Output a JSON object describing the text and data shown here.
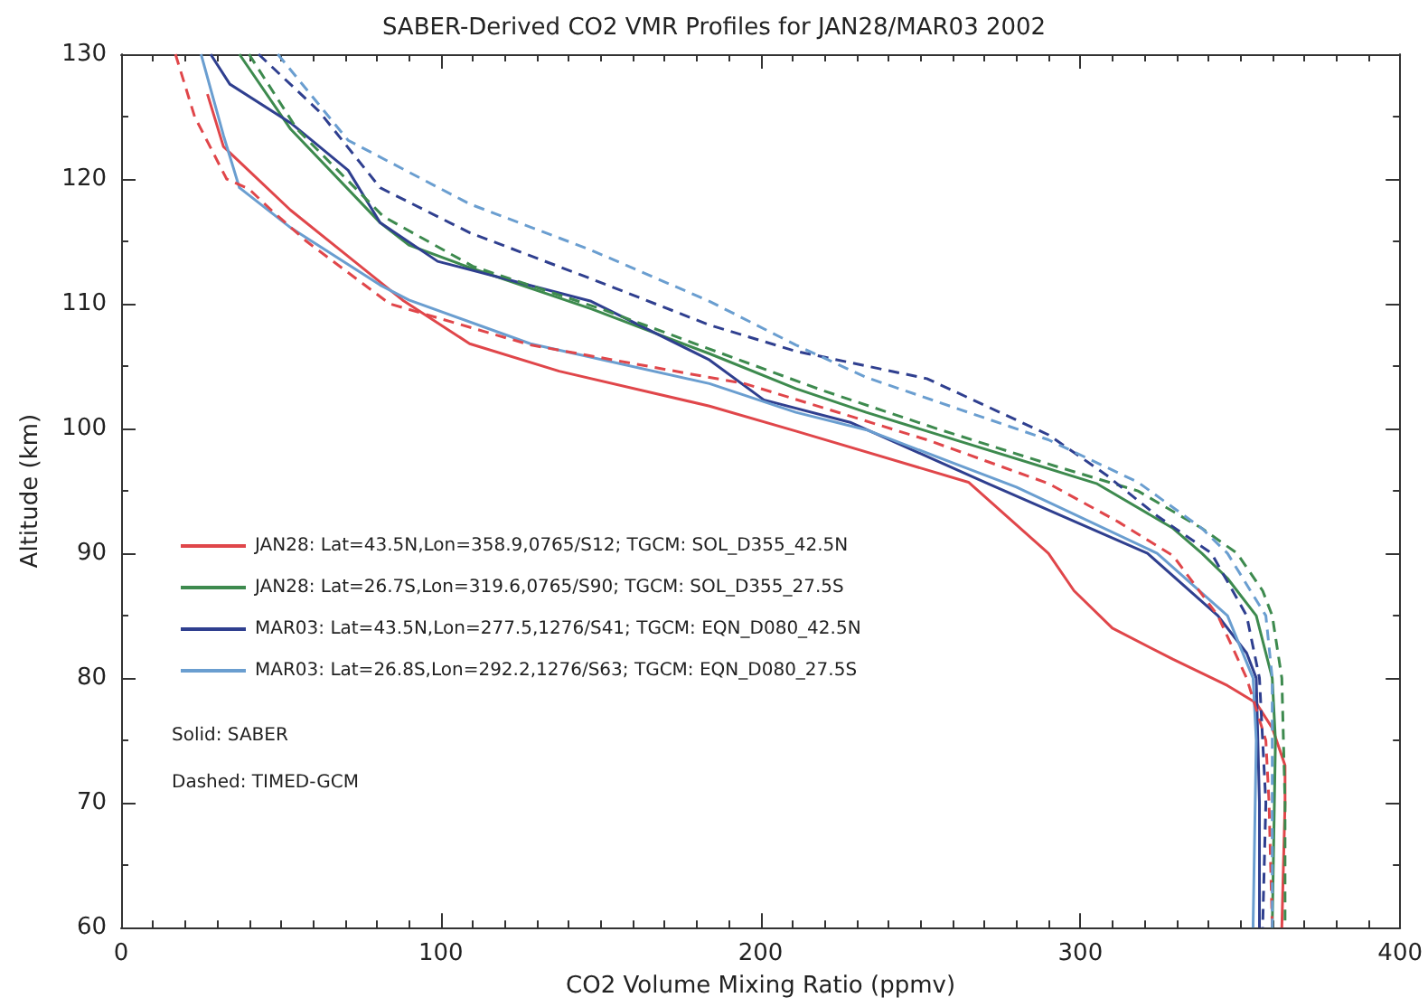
{
  "chart_data": {
    "type": "line",
    "title": "SABER-Derived CO2 VMR Profiles for JAN28/MAR03 2002",
    "xlabel": "CO2 Volume Mixing Ratio (ppmv)",
    "ylabel": "Altitude (km)",
    "xlim": [
      0,
      400
    ],
    "xticks": [
      0,
      100,
      200,
      300,
      400
    ],
    "ylim": [
      60,
      130
    ],
    "yticks": [
      60,
      70,
      80,
      90,
      100,
      110,
      120,
      130
    ],
    "grid": false,
    "legend": "left",
    "marker": "none",
    "annotations": [
      "Solid: SABER",
      "Dashed: TIMED-GCM"
    ],
    "series": [
      {
        "name": "JAN28: Lat=43.5N,Lon=358.9,0765/S12; TGCM: SOL_D355_42.5N",
        "color": "#e0464a",
        "line_style": "solid",
        "x": [
          27,
          32,
          53,
          71,
          88,
          109,
          137,
          184,
          211,
          265,
          290,
          298,
          310,
          329,
          346,
          355,
          360,
          364,
          364,
          363
        ],
        "values": [
          126.8,
          122.6,
          117.5,
          113.8,
          110.3,
          106.8,
          104.6,
          101.8,
          99.8,
          95.7,
          90,
          87,
          84,
          81.5,
          79.4,
          78,
          76,
          73,
          70,
          60
        ]
      },
      {
        "name": "JAN28: Lat=26.7S,Lon=319.6,0765/S90; TGCM: SOL_D355_27.5S",
        "color": "#3d8a4e",
        "line_style": "solid",
        "x": [
          37,
          53,
          81,
          90,
          109,
          147,
          184,
          211,
          233,
          305,
          329,
          338,
          346,
          355,
          360,
          361,
          360
        ],
        "values": [
          130,
          124,
          116.5,
          114.7,
          112.9,
          109.6,
          106,
          103.2,
          101.3,
          95.6,
          92,
          90,
          88,
          85,
          80,
          75,
          60
        ]
      },
      {
        "name": "MAR03: Lat=43.5N,Lon=277.5,1276/S41; TGCM: EQN_D080_42.5N",
        "color": "#2f3f8f",
        "line_style": "solid",
        "x": [
          28,
          34,
          53,
          71,
          81,
          99,
          147,
          184,
          201,
          228,
          271,
          321,
          343,
          352,
          355,
          356,
          356
        ],
        "values": [
          130,
          127.6,
          124.5,
          120.7,
          116.5,
          113.4,
          110.2,
          105.5,
          102.3,
          100.5,
          95.6,
          90,
          85,
          82,
          80,
          70,
          60
        ]
      },
      {
        "name": "MAR03: Lat=26.8S,Lon=292.2,1276/S63; TGCM: EQN_D080_27.5S",
        "color": "#6a9ed0",
        "line_style": "solid",
        "x": [
          25,
          32,
          37,
          53,
          81,
          90,
          128,
          184,
          211,
          233,
          280,
          324,
          346,
          354,
          355,
          354
        ],
        "values": [
          130,
          123.5,
          119.3,
          116.1,
          111.5,
          110.3,
          106.8,
          103.6,
          101.3,
          99.9,
          95.3,
          90,
          85,
          80,
          75,
          60
        ]
      },
      {
        "color": "#e0464a",
        "line_style": "dashed",
        "x": [
          17,
          23,
          33,
          40,
          47,
          58,
          84,
          128,
          184,
          195,
          252,
          290,
          312,
          329,
          343,
          352,
          358,
          359,
          360
        ],
        "values": [
          130,
          125,
          120,
          119.2,
          117.5,
          115,
          110,
          106.7,
          104.1,
          103.6,
          99.1,
          95.6,
          92.5,
          89.8,
          85,
          80,
          75,
          70,
          60
        ]
      },
      {
        "color": "#3d8a4e",
        "line_style": "dashed",
        "x": [
          40,
          55,
          82,
          110,
          150,
          188,
          220,
          255,
          292,
          318,
          338,
          349,
          357,
          360,
          363,
          364,
          364
        ],
        "values": [
          130,
          124,
          117,
          113,
          109.6,
          106,
          103,
          100,
          97,
          95,
          92,
          90,
          87,
          85,
          80,
          70,
          60
        ]
      },
      {
        "color": "#2f3f8f",
        "line_style": "dashed",
        "x": [
          43,
          62,
          81,
          109,
          147,
          184,
          211,
          252,
          290,
          308,
          324,
          341,
          352,
          356,
          358,
          357
        ],
        "values": [
          130,
          125.4,
          119.3,
          115.7,
          112,
          108.3,
          106.2,
          104,
          99.5,
          96.3,
          93,
          90,
          85,
          80,
          70,
          60
        ]
      },
      {
        "color": "#6a9ed0",
        "line_style": "dashed",
        "x": [
          49,
          71,
          109,
          147,
          184,
          211,
          233,
          290,
          318,
          338,
          346,
          358,
          360,
          360
        ],
        "values": [
          130,
          123.1,
          118,
          114.3,
          110.2,
          106.7,
          104.1,
          99.1,
          95.7,
          92,
          90,
          85,
          80,
          60
        ]
      }
    ]
  }
}
